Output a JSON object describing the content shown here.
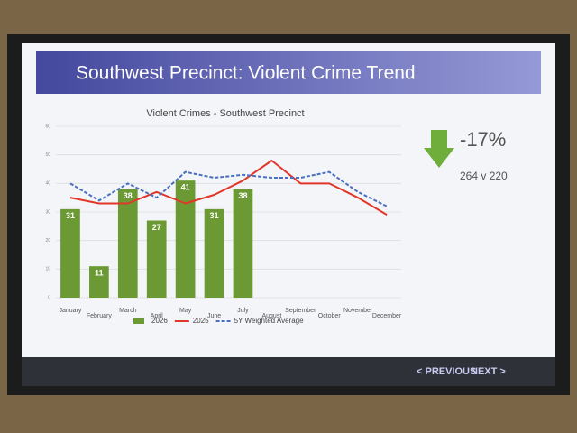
{
  "slide": {
    "title": "Southwest Precinct: Violent Crime Trend"
  },
  "kpi": {
    "change": "-17%",
    "comparison": "264 v 220"
  },
  "navigation": {
    "previous": "< PREVIOUS",
    "next": "NEXT >"
  },
  "chart_data": {
    "type": "bar",
    "title": "Violent Crimes - Southwest Precinct",
    "categories": [
      "January",
      "February",
      "March",
      "April",
      "May",
      "June",
      "July",
      "August",
      "September",
      "October",
      "November",
      "December"
    ],
    "series": [
      {
        "name": "2026",
        "type": "bar",
        "color": "#6b9a35",
        "values": [
          31,
          11,
          38,
          27,
          41,
          31,
          38,
          null,
          null,
          null,
          null,
          null
        ]
      },
      {
        "name": "2025",
        "type": "line",
        "color": "#e0372a",
        "values": [
          35,
          33,
          33,
          37,
          33,
          36,
          41,
          48,
          40,
          40,
          35,
          29
        ]
      },
      {
        "name": "5Y Weighted Average",
        "type": "line",
        "color": "#4a6fbf",
        "dashed": true,
        "values": [
          40,
          34,
          40,
          35,
          44,
          42,
          43,
          42,
          42,
          44,
          37,
          32
        ]
      }
    ],
    "ylim": [
      0,
      60
    ],
    "yticks": [
      0,
      10,
      20,
      30,
      40,
      50,
      60
    ],
    "grid": true,
    "legend": "bottom"
  }
}
